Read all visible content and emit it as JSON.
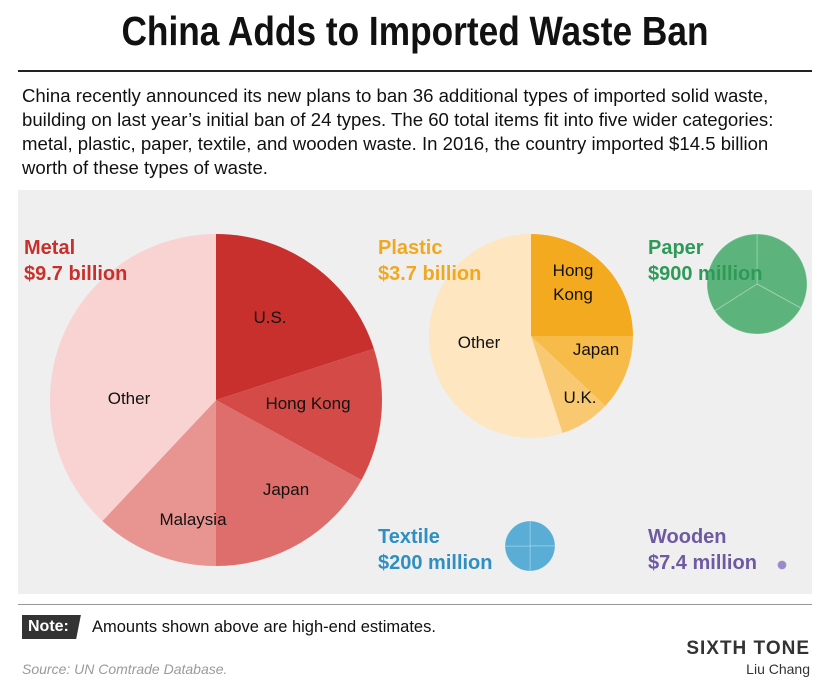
{
  "title": "China Adds to Imported Waste Ban",
  "intro": "China recently announced its new plans to ban 36 additional types of imported solid waste, building on last year’s initial ban of 24 types. The 60 total items fit into five wider categories: metal, plastic, paper, textile, and wooden waste. In 2016, the country imported $14.5 billion worth of these types of waste.",
  "note_label": "Note:",
  "note_text": "Amounts shown above are high-end estimates.",
  "source": "Source: UN Comtrade Database.",
  "brand": "SIXTH TONE",
  "author": "Liu Chang",
  "chart_data": [
    {
      "type": "pie",
      "category": "Metal",
      "total_label": "$9.7 billion",
      "total_usd": 9700000000,
      "color": "#c8302d",
      "slices": [
        {
          "label": "U.S.",
          "share": 0.2,
          "color": "#c8302d"
        },
        {
          "label": "Hong Kong",
          "share": 0.13,
          "color": "#d44a47"
        },
        {
          "label": "Japan",
          "share": 0.17,
          "color": "#de6e6b"
        },
        {
          "label": "Malaysia",
          "share": 0.12,
          "color": "#e89592"
        },
        {
          "label": "Other",
          "share": 0.38,
          "color": "#f8d3d2"
        }
      ]
    },
    {
      "type": "pie",
      "category": "Plastic",
      "total_label": "$3.7 billion",
      "total_usd": 3700000000,
      "color": "#f0a81e",
      "slices": [
        {
          "label": "Hong Kong",
          "share": 0.25,
          "color": "#f4aa1e"
        },
        {
          "label": "Japan",
          "share": 0.12,
          "color": "#f6bb48"
        },
        {
          "label": "U.K.",
          "share": 0.08,
          "color": "#f8c971"
        },
        {
          "label": "Other",
          "share": 0.55,
          "color": "#fde6c0"
        }
      ]
    },
    {
      "type": "pie",
      "category": "Paper",
      "total_label": "$900 million",
      "total_usd": 900000000,
      "color": "#2e9a57",
      "slices": [
        {
          "label": "",
          "share": 0.33,
          "color": "#5cb47c"
        },
        {
          "label": "",
          "share": 0.33,
          "color": "#5cb47c"
        },
        {
          "label": "",
          "share": 0.34,
          "color": "#5cb47c"
        }
      ]
    },
    {
      "type": "pie",
      "category": "Textile",
      "total_label": "$200 million",
      "total_usd": 200000000,
      "color": "#2f8fc0",
      "slices": [
        {
          "label": "",
          "share": 0.25,
          "color": "#5aaed6"
        },
        {
          "label": "",
          "share": 0.25,
          "color": "#5aaed6"
        },
        {
          "label": "",
          "share": 0.25,
          "color": "#5aaed6"
        },
        {
          "label": "",
          "share": 0.25,
          "color": "#5aaed6"
        }
      ]
    },
    {
      "type": "pie",
      "category": "Wooden",
      "total_label": "$7.4 million",
      "total_usd": 7400000,
      "color": "#6e5aa0",
      "slices": [
        {
          "label": "",
          "share": 1.0,
          "color": "#9a8ac6"
        }
      ]
    }
  ]
}
